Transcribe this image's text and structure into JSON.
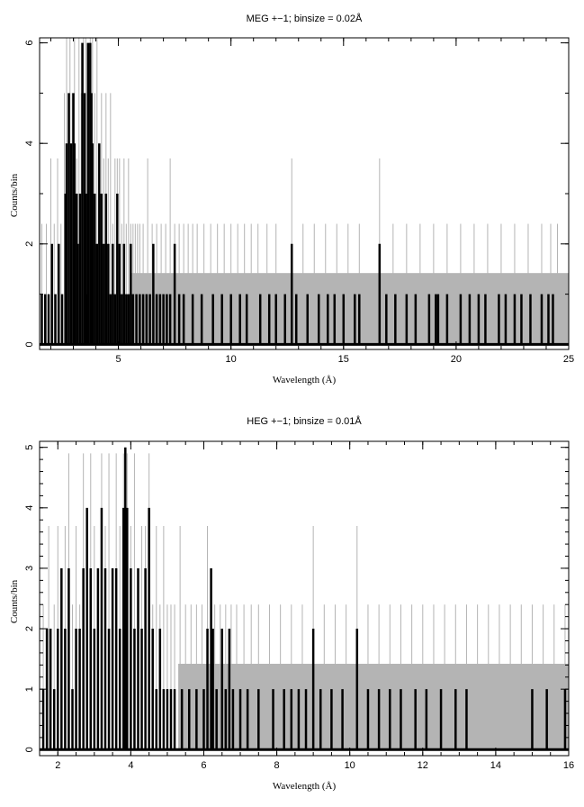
{
  "chart_data": [
    {
      "type": "line",
      "title": "MEG +−1; binsize = 0.02Å",
      "xlabel": "Wavelength (Å)",
      "ylabel": "Counts/bin",
      "xlim": [
        1.5,
        25
      ],
      "ylim": [
        -0.1,
        6.1
      ],
      "xticks": [
        5,
        10,
        15,
        20,
        25
      ],
      "yticks": [
        0,
        2,
        4,
        6
      ],
      "xminor_step": 1,
      "yminor_step": 1,
      "error_band": {
        "x": [
          5.6,
          25
        ],
        "upper": 1.42,
        "lower": 0,
        "color": "#b4b4b4"
      },
      "series": [
        {
          "style": "error-spikes",
          "color": "#b4b4b4",
          "x": [
            1.6,
            1.8,
            2.0,
            2.15,
            2.3,
            2.45,
            2.6,
            2.7,
            2.85,
            2.95,
            3.05,
            3.15,
            3.25,
            3.35,
            3.45,
            3.55,
            3.65,
            3.75,
            3.85,
            3.95,
            4.05,
            4.15,
            4.25,
            4.35,
            4.45,
            4.55,
            4.65,
            4.75,
            4.85,
            4.95,
            5.05,
            5.15,
            5.25,
            5.35,
            5.45,
            5.55,
            5.65,
            5.75,
            5.85,
            5.95,
            6.1,
            6.3,
            6.5,
            6.7,
            6.9,
            7.1,
            7.3,
            7.5,
            7.7,
            7.9,
            8.1,
            8.3,
            8.5,
            8.8,
            9.1,
            9.4,
            9.7,
            10.0,
            10.3,
            10.6,
            10.9,
            11.2,
            11.6,
            12.0,
            12.7,
            13.2,
            13.7,
            14.2,
            14.7,
            15.2,
            15.7,
            16.6,
            17.2,
            17.8,
            18.4,
            19.0,
            19.6,
            20.2,
            20.8,
            21.4,
            22.0,
            22.6,
            23.2,
            23.8,
            24.2,
            24.5
          ],
          "values": [
            2.4,
            2.4,
            3.7,
            2.4,
            3.7,
            2.4,
            5.0,
            6.1,
            6.1,
            5.0,
            6.1,
            3.7,
            6.1,
            5.0,
            6.1,
            6.1,
            3.7,
            6.1,
            6.1,
            5.0,
            6.1,
            3.7,
            5.0,
            3.7,
            5.0,
            3.7,
            5.0,
            2.4,
            3.7,
            3.7,
            3.7,
            2.4,
            3.7,
            2.4,
            3.7,
            2.4,
            2.4,
            2.4,
            2.4,
            2.4,
            2.4,
            3.7,
            2.4,
            2.4,
            2.4,
            2.4,
            3.7,
            2.4,
            2.4,
            2.4,
            2.4,
            2.4,
            2.4,
            2.4,
            2.4,
            2.4,
            2.4,
            2.4,
            2.4,
            2.4,
            2.4,
            2.4,
            2.4,
            2.4,
            3.7,
            2.4,
            2.4,
            2.4,
            2.4,
            2.4,
            2.4,
            3.7,
            2.4,
            2.4,
            2.4,
            2.4,
            2.4,
            2.4,
            2.4,
            2.4,
            2.4,
            2.4,
            2.4,
            2.4,
            2.4,
            2.4
          ]
        },
        {
          "style": "histogram-counts",
          "color": "#000000",
          "x": [
            1.6,
            1.75,
            1.9,
            2.05,
            2.2,
            2.35,
            2.5,
            2.65,
            2.7,
            2.8,
            2.9,
            3.0,
            3.05,
            3.15,
            3.2,
            3.3,
            3.4,
            3.5,
            3.55,
            3.6,
            3.65,
            3.75,
            3.8,
            3.85,
            3.95,
            4.05,
            4.15,
            4.25,
            4.35,
            4.45,
            4.55,
            4.65,
            4.75,
            4.85,
            4.95,
            5.05,
            5.15,
            5.25,
            5.35,
            5.45,
            5.55,
            5.65,
            5.8,
            5.95,
            6.1,
            6.25,
            6.4,
            6.55,
            6.7,
            6.85,
            7.0,
            7.15,
            7.3,
            7.5,
            7.7,
            7.9,
            8.3,
            8.7,
            9.2,
            9.6,
            10.0,
            10.4,
            10.7,
            11.3,
            11.7,
            12.0,
            12.4,
            12.7,
            12.9,
            13.4,
            13.9,
            14.3,
            14.6,
            15.0,
            15.5,
            15.7,
            16.6,
            16.9,
            17.3,
            17.8,
            18.2,
            18.8,
            19.1,
            19.2,
            19.6,
            20.2,
            20.6,
            21.0,
            21.3,
            21.9,
            22.2,
            22.6,
            22.9,
            23.3,
            23.8,
            24.1,
            24.3
          ],
          "values": [
            1,
            1,
            1,
            2,
            1,
            2,
            1,
            3,
            4,
            5,
            4,
            5,
            4,
            3,
            2,
            3,
            6,
            5,
            3,
            1,
            6,
            6,
            5,
            4,
            3,
            2,
            4,
            3,
            2,
            3,
            2,
            1,
            2,
            1,
            3,
            2,
            1,
            2,
            1,
            1,
            2,
            1,
            1,
            1,
            1,
            1,
            1,
            2,
            1,
            1,
            1,
            1,
            1,
            2,
            1,
            1,
            1,
            1,
            1,
            1,
            1,
            1,
            1,
            1,
            1,
            1,
            1,
            2,
            1,
            1,
            1,
            1,
            1,
            1,
            1,
            1,
            2,
            1,
            1,
            1,
            1,
            1,
            1,
            1,
            1,
            1,
            1,
            1,
            1,
            1,
            1,
            1,
            1,
            1,
            1,
            1,
            1
          ]
        }
      ]
    },
    {
      "type": "line",
      "title": "HEG +−1; binsize = 0.01Å",
      "xlabel": "Wavelength (Å)",
      "ylabel": "Counts/bin",
      "xlim": [
        1.5,
        16
      ],
      "ylim": [
        -0.1,
        5.1
      ],
      "xticks": [
        2,
        4,
        6,
        8,
        10,
        12,
        14,
        16
      ],
      "yticks": [
        0,
        1,
        2,
        3,
        4,
        5
      ],
      "xminor_step": 0.5,
      "yminor_step": 0.2,
      "error_band": {
        "x": [
          5.3,
          16
        ],
        "upper": 1.42,
        "lower": 0,
        "color": "#b4b4b4"
      },
      "series": [
        {
          "style": "error-spikes",
          "color": "#b4b4b4",
          "x": [
            1.6,
            1.75,
            1.9,
            2.0,
            2.1,
            2.2,
            2.3,
            2.4,
            2.5,
            2.6,
            2.7,
            2.8,
            2.9,
            3.0,
            3.1,
            3.2,
            3.3,
            3.4,
            3.5,
            3.6,
            3.7,
            3.8,
            3.9,
            4.0,
            4.1,
            4.2,
            4.3,
            4.4,
            4.5,
            4.6,
            4.7,
            4.8,
            4.9,
            5.0,
            5.1,
            5.2,
            5.35,
            5.5,
            5.65,
            5.8,
            5.95,
            6.1,
            6.3,
            6.45,
            6.6,
            6.75,
            6.9,
            7.1,
            7.3,
            7.5,
            7.8,
            8.1,
            8.4,
            8.7,
            9.0,
            9.3,
            9.6,
            9.9,
            10.2,
            10.5,
            10.8,
            11.1,
            11.4,
            11.7,
            12.0,
            12.3,
            12.6,
            12.9,
            13.2,
            13.5,
            13.8,
            14.1,
            14.4,
            14.7,
            15.0,
            15.3,
            15.6,
            15.9
          ],
          "values": [
            2.4,
            3.7,
            2.4,
            3.7,
            2.4,
            3.7,
            4.9,
            2.4,
            3.7,
            2.4,
            4.9,
            2.4,
            4.9,
            3.7,
            2.4,
            4.9,
            3.7,
            4.9,
            2.4,
            4.9,
            3.7,
            4.9,
            4.9,
            3.7,
            4.9,
            2.4,
            3.7,
            3.7,
            4.9,
            2.4,
            3.7,
            2.4,
            3.7,
            2.4,
            2.4,
            2.4,
            3.7,
            2.4,
            2.4,
            2.4,
            2.4,
            3.7,
            2.4,
            2.4,
            2.4,
            2.4,
            2.4,
            2.4,
            2.4,
            2.4,
            2.4,
            2.4,
            2.4,
            2.4,
            3.7,
            2.4,
            2.4,
            2.4,
            3.7,
            2.4,
            2.4,
            2.4,
            2.4,
            2.4,
            2.4,
            2.4,
            2.4,
            2.4,
            2.4,
            2.4,
            2.4,
            2.4,
            2.4,
            2.4,
            2.4,
            2.4,
            2.4,
            2.4
          ]
        },
        {
          "style": "histogram-counts",
          "color": "#000000",
          "x": [
            1.6,
            1.7,
            1.8,
            1.9,
            2.0,
            2.1,
            2.2,
            2.3,
            2.4,
            2.5,
            2.6,
            2.7,
            2.8,
            2.9,
            3.0,
            3.1,
            3.2,
            3.3,
            3.4,
            3.5,
            3.6,
            3.7,
            3.8,
            3.85,
            3.9,
            4.0,
            4.1,
            4.2,
            4.3,
            4.4,
            4.5,
            4.6,
            4.7,
            4.8,
            4.9,
            5.0,
            5.1,
            5.2,
            5.4,
            5.6,
            5.8,
            6.0,
            6.1,
            6.2,
            6.25,
            6.35,
            6.5,
            6.6,
            6.7,
            6.8,
            7.0,
            7.2,
            7.5,
            7.9,
            8.2,
            8.4,
            8.6,
            8.8,
            9.0,
            9.2,
            9.5,
            9.8,
            10.2,
            10.5,
            10.8,
            11.1,
            11.4,
            11.8,
            12.1,
            12.5,
            12.9,
            13.2,
            15.0,
            15.4,
            15.9
          ],
          "values": [
            1,
            2,
            2,
            1,
            2,
            3,
            2,
            3,
            1,
            2,
            2,
            3,
            4,
            3,
            2,
            3,
            4,
            3,
            2,
            3,
            3,
            2,
            4,
            5,
            4,
            3,
            2,
            3,
            2,
            3,
            4,
            2,
            1,
            2,
            1,
            1,
            1,
            1,
            1,
            1,
            1,
            1,
            2,
            3,
            2,
            1,
            2,
            1,
            2,
            1,
            1,
            1,
            1,
            1,
            1,
            1,
            1,
            1,
            2,
            1,
            1,
            1,
            2,
            1,
            1,
            1,
            1,
            1,
            1,
            1,
            1,
            1,
            1,
            1,
            1
          ]
        }
      ]
    }
  ]
}
